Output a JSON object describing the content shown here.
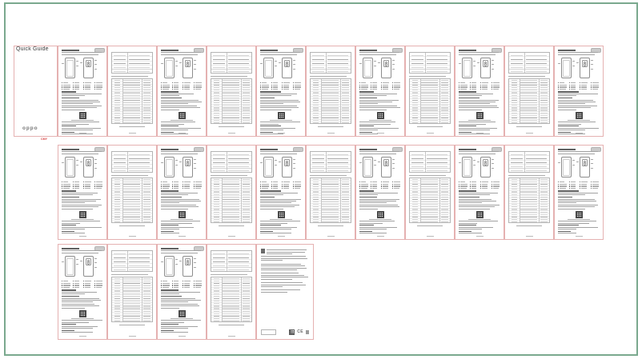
{
  "document": {
    "title": "Quick Guide",
    "brand": "oppo",
    "color_mark": "CMY",
    "ce_mark": "CE"
  },
  "layout": {
    "rows": [
      {
        "name": "row-1",
        "pages": [
          "cover",
          "diagram",
          "table",
          "diagram",
          "table",
          "diagram",
          "table",
          "diagram",
          "table",
          "diagram",
          "table",
          "diagram"
        ]
      },
      {
        "name": "row-2",
        "pages": [
          "diagram",
          "table",
          "diagram",
          "table",
          "diagram",
          "table",
          "diagram",
          "table",
          "diagram",
          "table",
          "diagram"
        ]
      },
      {
        "name": "row-3",
        "pages": [
          "diagram",
          "table",
          "diagram",
          "table",
          "regulatory"
        ]
      }
    ]
  },
  "colors": {
    "frame_green": "#7aa98e",
    "crop_mark_pink": "#e5b1b1",
    "body_text_grey": "#a2a2a2",
    "heading_grey": "#606060",
    "registration_red": "#d64040"
  }
}
